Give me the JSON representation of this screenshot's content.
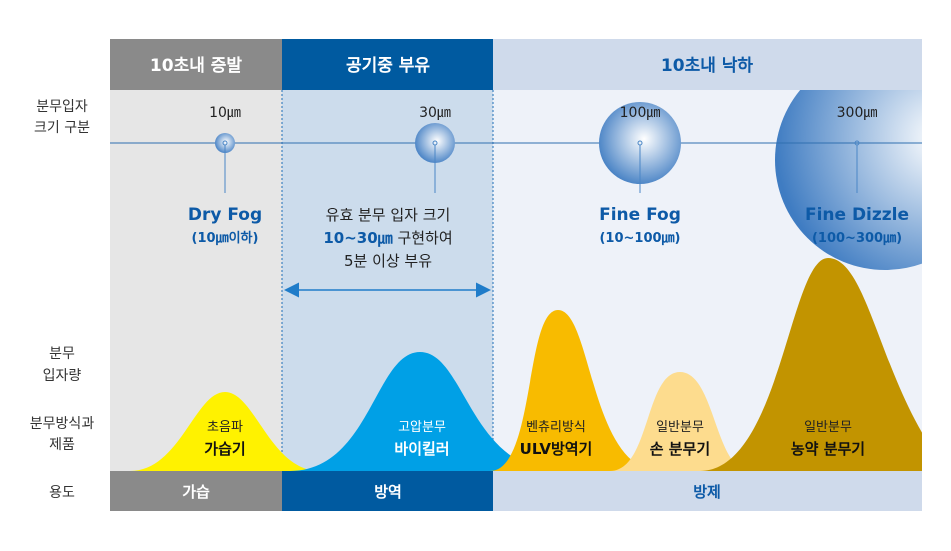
{
  "colors": {
    "gray": "#8a8a8a",
    "navy": "#005aa0",
    "light": "#cfdaeb",
    "accent": "#0d5aa7",
    "yellow": "#fff200",
    "blue": "#00a0e6",
    "orange": "#f8bb00",
    "light_orange": "#fddc8e",
    "gold": "#c29400"
  },
  "header": {
    "col1": "10초내 증발",
    "col2": "공기중 부유",
    "col3": "10초내 낙하"
  },
  "row_labels": {
    "size_line1": "분무입자",
    "size_line2": "크기 구분",
    "amount_line1": "분무",
    "amount_line2": "입자량",
    "method_line1": "분무방식과",
    "method_line2": "제품",
    "use": "용도"
  },
  "particles": [
    {
      "size": "10㎛",
      "title": "Dry Fog",
      "range": "(10㎛이하)"
    },
    {
      "size": "30㎛"
    },
    {
      "size": "100㎛",
      "title": "Fine Fog",
      "range": "(10~100㎛)"
    },
    {
      "size": "300㎛",
      "title": "Fine Dizzle",
      "range": "(100~300㎛)"
    }
  ],
  "middle_note": {
    "line1": "유효 분무 입자 크기",
    "line2_highlight": "10~30㎛",
    "line2_rest": " 구현하여",
    "line3": "5분 이상 부유"
  },
  "products": [
    {
      "method": "초음파",
      "name": "가습기"
    },
    {
      "method": "고압분무",
      "name": "바이킬러"
    },
    {
      "method": "벤츄리방식",
      "name": "ULV방역기"
    },
    {
      "method": "일반분무",
      "name": "손 분무기"
    },
    {
      "method": "일반분무",
      "name": "농약 분무기"
    }
  ],
  "uses": {
    "col1": "가습",
    "col2": "방역",
    "col3": "방제"
  }
}
